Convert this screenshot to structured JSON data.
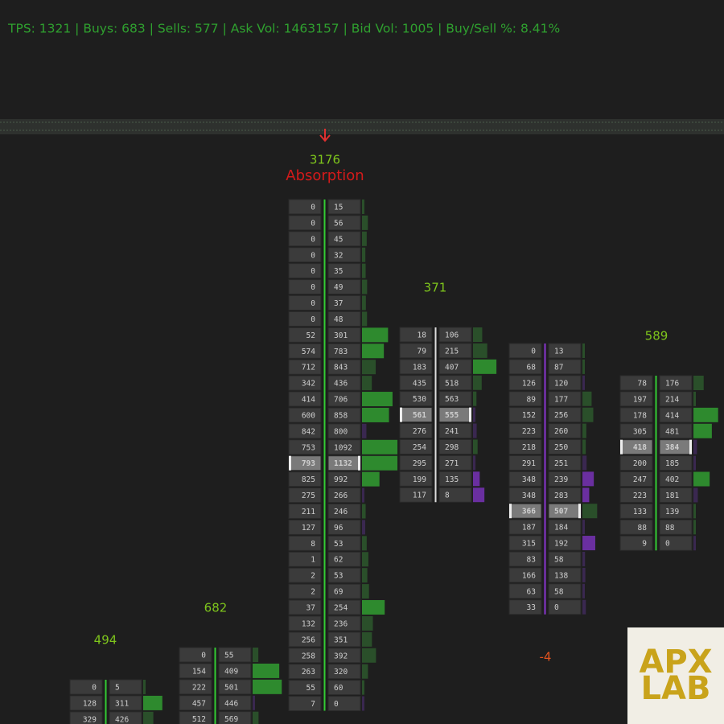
{
  "status": "TPS: 1321 | Buys: 683 | Sells: 577 | Ask Vol: 1463157 | Bid Vol: 1005 | Buy/Sell %: 8.41%",
  "columns": [
    {
      "total": 494,
      "candle_color": "#33cc33",
      "rows": [
        [
          0,
          5
        ],
        [
          128,
          311
        ],
        [
          329,
          426
        ]
      ]
    },
    {
      "total": 682,
      "candle_color": "#33cc33",
      "rows": [
        [
          0,
          55
        ],
        [
          154,
          409
        ],
        [
          222,
          501
        ],
        [
          457,
          446
        ],
        [
          512,
          569
        ]
      ]
    },
    {
      "total": 3176,
      "annotation": "Absorption",
      "candle_color": "#33cc33",
      "poc": 16,
      "rows": [
        [
          0,
          15
        ],
        [
          0,
          56
        ],
        [
          0,
          45
        ],
        [
          0,
          32
        ],
        [
          0,
          35
        ],
        [
          0,
          49
        ],
        [
          0,
          37
        ],
        [
          0,
          48
        ],
        [
          52,
          301
        ],
        [
          574,
          783
        ],
        [
          712,
          843
        ],
        [
          342,
          436
        ],
        [
          414,
          706
        ],
        [
          600,
          858
        ],
        [
          842,
          800
        ],
        [
          753,
          1092
        ],
        [
          793,
          1132
        ],
        [
          825,
          992
        ],
        [
          275,
          266
        ],
        [
          211,
          246
        ],
        [
          127,
          96
        ],
        [
          8,
          53
        ],
        [
          1,
          62
        ],
        [
          2,
          53
        ],
        [
          2,
          69
        ],
        [
          37,
          254
        ],
        [
          132,
          236
        ],
        [
          256,
          351
        ],
        [
          258,
          392
        ],
        [
          263,
          320
        ],
        [
          55,
          60
        ],
        [
          7,
          0
        ]
      ]
    },
    {
      "total": 371,
      "candle_color": "#dddddd",
      "poc": 5,
      "rows": [
        [
          18,
          106
        ],
        [
          79,
          215
        ],
        [
          183,
          407
        ],
        [
          435,
          518
        ],
        [
          530,
          563
        ],
        [
          561,
          555
        ],
        [
          276,
          241
        ],
        [
          254,
          298
        ],
        [
          295,
          271
        ],
        [
          199,
          135
        ],
        [
          117,
          8
        ]
      ]
    },
    {
      "total": -4,
      "candle_color": "#8a35d0",
      "poc": 10,
      "rows": [
        [
          0,
          13
        ],
        [
          68,
          87
        ],
        [
          126,
          120
        ],
        [
          89,
          177
        ],
        [
          152,
          256
        ],
        [
          223,
          260
        ],
        [
          218,
          250
        ],
        [
          291,
          251
        ],
        [
          348,
          239
        ],
        [
          348,
          283
        ],
        [
          366,
          507
        ],
        [
          187,
          184
        ],
        [
          315,
          192
        ],
        [
          83,
          58
        ],
        [
          166,
          138
        ],
        [
          63,
          58
        ],
        [
          33,
          0
        ]
      ]
    },
    {
      "total": 589,
      "candle_color": "#33cc33",
      "poc": 4,
      "rows": [
        [
          78,
          176
        ],
        [
          197,
          214
        ],
        [
          178,
          414
        ],
        [
          305,
          481
        ],
        [
          418,
          384
        ],
        [
          200,
          185
        ],
        [
          247,
          402
        ],
        [
          223,
          181
        ],
        [
          133,
          139
        ],
        [
          88,
          88
        ],
        [
          9,
          0
        ]
      ]
    }
  ],
  "logo": [
    "APX",
    "LAB"
  ]
}
